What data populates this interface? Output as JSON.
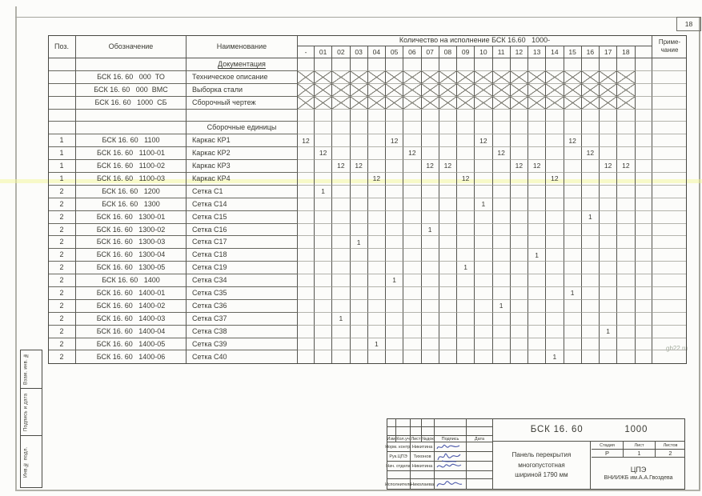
{
  "page": {
    "sheet_number": "18",
    "watermark": "gb22.ru"
  },
  "spec_table": {
    "col_pos": "Поз.",
    "col_designation": "Обозначение",
    "col_name": "Наименование",
    "qty_group_label": "Количество на исполнение БСК 16.60   1000-",
    "qty_columns": [
      "-",
      "01",
      "02",
      "03",
      "04",
      "05",
      "06",
      "07",
      "08",
      "09",
      "10",
      "11",
      "12",
      "13",
      "14",
      "15",
      "16",
      "17",
      "18",
      ""
    ],
    "col_note_line1": "Приме-",
    "col_note_line2": "чание",
    "rows": [
      {
        "type": "section",
        "name": "Документация",
        "underline": true
      },
      {
        "type": "hatched",
        "designation": "БСК 16. 60   000  ТО",
        "name": "Техническое описание"
      },
      {
        "type": "hatched",
        "designation": "БСК 16. 60   000  ВМС",
        "name": "Выборка стали"
      },
      {
        "type": "hatched",
        "designation": "БСК 16. 60   1000  СБ",
        "name": "Сборочный чертеж"
      },
      {
        "type": "spacer"
      },
      {
        "type": "section",
        "name": "Сборочные единицы",
        "underline": false
      },
      {
        "type": "item",
        "pos": "1",
        "designation": "БСК 16. 60   1100",
        "name": "Каркас КР1",
        "qty": {
          "-": "12",
          "05": "12",
          "10": "12",
          "15": "12"
        }
      },
      {
        "type": "item",
        "pos": "1",
        "designation": "БСК 16. 60   1100-01",
        "name": "Каркас КР2",
        "qty": {
          "01": "12",
          "06": "12",
          "11": "12",
          "16": "12"
        }
      },
      {
        "type": "item",
        "pos": "1",
        "designation": "БСК 16. 60   1100-02",
        "name": "Каркас КР3",
        "qty": {
          "02": "12",
          "03": "12",
          "07": "12",
          "08": "12",
          "12": "12",
          "13": "12",
          "17": "12",
          "18": "12"
        }
      },
      {
        "type": "item",
        "pos": "1",
        "designation": "БСК 16. 60   1100-03",
        "name": "Каркас КР4",
        "qty": {
          "04": "12",
          "09": "12",
          "14": "12"
        }
      },
      {
        "type": "item",
        "pos": "2",
        "designation": "БСК 16. 60   1200",
        "name": "Сетка С1",
        "qty": {
          "01": "1"
        }
      },
      {
        "type": "item",
        "pos": "2",
        "designation": "БСК 16. 60   1300",
        "name": "Сетка С14",
        "qty": {
          "10": "1"
        }
      },
      {
        "type": "item",
        "pos": "2",
        "designation": "БСК 16. 60   1300-01",
        "name": "Сетка С15",
        "qty": {
          "16": "1"
        }
      },
      {
        "type": "item",
        "pos": "2",
        "designation": "БСК 16. 60   1300-02",
        "name": "Сетка С16",
        "qty": {
          "07": "1"
        }
      },
      {
        "type": "item",
        "pos": "2",
        "designation": "БСК 16. 60   1300-03",
        "name": "Сетка С17",
        "qty": {
          "03": "1"
        }
      },
      {
        "type": "item",
        "pos": "2",
        "designation": "БСК 16. 60   1300-04",
        "name": "Сетка С18",
        "qty": {
          "13": "1"
        }
      },
      {
        "type": "item",
        "pos": "2",
        "designation": "БСК 16. 60   1300-05",
        "name": "Сетка С19",
        "qty": {
          "09": "1"
        }
      },
      {
        "type": "item",
        "pos": "2",
        "designation": "БСК 16. 60   1400",
        "name": "Сетка С34",
        "qty": {
          "05": "1"
        }
      },
      {
        "type": "item",
        "pos": "2",
        "designation": "БСК 16. 60   1400-01",
        "name": "Сетка С35",
        "qty": {
          "15": "1"
        }
      },
      {
        "type": "item",
        "pos": "2",
        "designation": "БСК 16. 60   1400-02",
        "name": "Сетка С36",
        "qty": {
          "11": "1"
        }
      },
      {
        "type": "item",
        "pos": "2",
        "designation": "БСК 16. 60   1400-03",
        "name": "Сетка С37",
        "qty": {
          "02": "1"
        }
      },
      {
        "type": "item",
        "pos": "2",
        "designation": "БСК 16. 60   1400-04",
        "name": "Сетка С38",
        "qty": {
          "17": "1"
        }
      },
      {
        "type": "item",
        "pos": "2",
        "designation": "БСК 16. 60   1400-05",
        "name": "Сетка С39",
        "qty": {
          "04": "1"
        }
      },
      {
        "type": "item",
        "pos": "2",
        "designation": "БСК 16. 60   1400-06",
        "name": "Сетка С40",
        "qty": {
          "14": "1"
        }
      }
    ]
  },
  "side_strip": {
    "cells": [
      "Взам. инв. №",
      "Подпись и дата",
      "Инв.№ подл."
    ]
  },
  "title_block": {
    "doc_code": "БСК 16. 60",
    "doc_variant": "1000",
    "product_lines": [
      "Панель перекрытия",
      "многопустотная",
      "шириной 1790 мм"
    ],
    "rev_headers": [
      "Изм",
      "Кол.уч",
      "Лист",
      "№док",
      "Подпись",
      "Дата"
    ],
    "sign_rows": [
      {
        "role": "Норм. контр.",
        "name": "Никитина"
      },
      {
        "role": "Рук.ЦПЭ",
        "name": "Тихонов"
      },
      {
        "role": "Нач. отдела",
        "name": "Никитина"
      },
      {
        "role": "Исполнитель",
        "name": "Николаева"
      }
    ],
    "stage_label": "Стадия",
    "sheet_label": "Лист",
    "sheets_label": "Листов",
    "stage": "Р",
    "sheet": "1",
    "sheets": "2",
    "org_line1": "ЦПЭ",
    "org_line2": "ВНИИЖБ им.А.А.Гвоздева"
  },
  "colors": {
    "ink": "#3a3a33",
    "line_dark": "#51514a",
    "line_light": "#b3b3ac",
    "signature_blue": "#2f3e9e",
    "streak_yellow": "#f2f696"
  }
}
